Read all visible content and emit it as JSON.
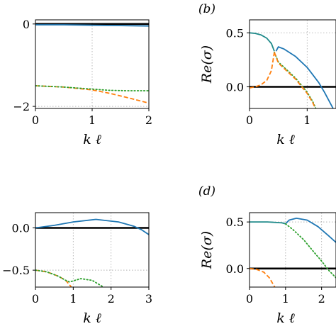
{
  "chart_data": [
    {
      "panel": "a",
      "type": "line",
      "panel_label": "",
      "xlabel": "k ℓ",
      "ylabel": "",
      "xlim": [
        0,
        2
      ],
      "ylim": [
        -2.05,
        0.1
      ],
      "xticks": [
        "0",
        "1",
        "2"
      ],
      "yticks": [
        "0",
        "−2"
      ],
      "ytick_values": [
        0,
        -2
      ],
      "grid": true,
      "series": [
        {
          "color": "#000000",
          "style": "solid",
          "points": [
            [
              0,
              0
            ],
            [
              2,
              0
            ]
          ]
        },
        {
          "color": "#1f77b4",
          "style": "solid",
          "points": [
            [
              0,
              -0.02
            ],
            [
              0.5,
              -0.02
            ],
            [
              1.0,
              -0.03
            ],
            [
              1.5,
              -0.04
            ],
            [
              2.0,
              -0.05
            ]
          ]
        },
        {
          "color": "#ff7f0e",
          "style": "dashed",
          "points": [
            [
              0,
              -1.5
            ],
            [
              0.5,
              -1.53
            ],
            [
              1.0,
              -1.6
            ],
            [
              1.3,
              -1.68
            ],
            [
              1.6,
              -1.78
            ],
            [
              2.0,
              -1.92
            ]
          ]
        },
        {
          "color": "#2ca02c",
          "style": "dotted",
          "points": [
            [
              0,
              -1.5
            ],
            [
              0.5,
              -1.53
            ],
            [
              1.0,
              -1.58
            ],
            [
              1.3,
              -1.61
            ],
            [
              1.6,
              -1.62
            ],
            [
              2.0,
              -1.62
            ]
          ]
        }
      ]
    },
    {
      "panel": "b",
      "type": "line",
      "panel_label": "(b)",
      "xlabel": "k ℓ",
      "ylabel": "Re(σ)",
      "xlim": [
        0,
        1.5
      ],
      "ylim": [
        -0.2,
        0.62
      ],
      "xticks": [
        "0",
        "1"
      ],
      "xtick_values": [
        0,
        1
      ],
      "yticks": [
        "0.0",
        "0.5"
      ],
      "ytick_values": [
        0,
        0.5
      ],
      "grid": true,
      "series": [
        {
          "color": "#000000",
          "style": "solid",
          "points": [
            [
              0,
              0
            ],
            [
              1.5,
              0
            ]
          ]
        },
        {
          "color": "#1f8a8a",
          "style": "solid",
          "points": [
            [
              0,
              0.5
            ],
            [
              0.1,
              0.495
            ],
            [
              0.2,
              0.48
            ],
            [
              0.3,
              0.45
            ],
            [
              0.38,
              0.4
            ],
            [
              0.43,
              0.33
            ]
          ]
        },
        {
          "color": "#1f77b4",
          "style": "solid",
          "points": [
            [
              0.46,
              0.33
            ],
            [
              0.5,
              0.37
            ],
            [
              0.6,
              0.35
            ],
            [
              0.8,
              0.28
            ],
            [
              1.0,
              0.18
            ],
            [
              1.2,
              0.04
            ],
            [
              1.3,
              -0.05
            ],
            [
              1.45,
              -0.2
            ]
          ]
        },
        {
          "color": "#ff7f0e",
          "style": "dashed",
          "points": [
            [
              0,
              -0.01
            ],
            [
              0.1,
              0.0
            ],
            [
              0.2,
              0.02
            ],
            [
              0.3,
              0.06
            ],
            [
              0.38,
              0.15
            ],
            [
              0.43,
              0.32
            ]
          ]
        },
        {
          "color": "#2ca02c",
          "style": "dotted",
          "points": [
            [
              0.43,
              0.32
            ],
            [
              0.5,
              0.23
            ],
            [
              0.6,
              0.18
            ],
            [
              0.8,
              0.08
            ],
            [
              1.0,
              -0.05
            ],
            [
              1.1,
              -0.14
            ],
            [
              1.15,
              -0.2
            ]
          ]
        },
        {
          "color": "#ff7f0e",
          "style": "dashed",
          "points": [
            [
              0.43,
              0.32
            ],
            [
              0.5,
              0.22
            ],
            [
              0.6,
              0.17
            ],
            [
              0.8,
              0.07
            ],
            [
              1.0,
              -0.06
            ],
            [
              1.1,
              -0.15
            ],
            [
              1.14,
              -0.2
            ]
          ]
        }
      ]
    },
    {
      "panel": "c",
      "type": "line",
      "panel_label": "",
      "xlabel": "k ℓ",
      "ylabel": "",
      "xlim": [
        0,
        3
      ],
      "ylim": [
        -0.7,
        0.18
      ],
      "xticks": [
        "0",
        "1",
        "2",
        "3"
      ],
      "xtick_values": [
        0,
        1,
        2,
        3
      ],
      "yticks": [
        "0.0",
        "−0.5"
      ],
      "ytick_values": [
        0,
        -0.5
      ],
      "grid": true,
      "series": [
        {
          "color": "#000000",
          "style": "solid",
          "points": [
            [
              0,
              0
            ],
            [
              3,
              0
            ]
          ]
        },
        {
          "color": "#1f77b4",
          "style": "solid",
          "points": [
            [
              0,
              0.0
            ],
            [
              0.5,
              0.03
            ],
            [
              1.0,
              0.07
            ],
            [
              1.6,
              0.1
            ],
            [
              2.2,
              0.07
            ],
            [
              2.6,
              0.02
            ],
            [
              2.8,
              -0.02
            ],
            [
              3.0,
              -0.08
            ]
          ]
        },
        {
          "color": "#ff7f0e",
          "style": "dashed",
          "points": [
            [
              0,
              -0.5
            ],
            [
              0.3,
              -0.52
            ],
            [
              0.6,
              -0.57
            ],
            [
              0.8,
              -0.62
            ],
            [
              0.95,
              -0.7
            ]
          ]
        },
        {
          "color": "#2ca02c",
          "style": "dotted",
          "points": [
            [
              0,
              -0.5
            ],
            [
              0.3,
              -0.52
            ],
            [
              0.6,
              -0.57
            ],
            [
              0.8,
              -0.62
            ],
            [
              0.9,
              -0.64
            ],
            [
              1.2,
              -0.6
            ],
            [
              1.5,
              -0.62
            ],
            [
              1.8,
              -0.7
            ]
          ]
        }
      ]
    },
    {
      "panel": "d",
      "type": "line",
      "panel_label": "(d)",
      "xlabel": "k ℓ",
      "ylabel": "Re(σ)",
      "xlim": [
        0,
        2.4
      ],
      "ylim": [
        -0.2,
        0.6
      ],
      "xticks": [
        "0",
        "1",
        "2"
      ],
      "xtick_values": [
        0,
        1,
        2
      ],
      "yticks": [
        "0.0",
        "0.5"
      ],
      "ytick_values": [
        0,
        0.5
      ],
      "grid": true,
      "series": [
        {
          "color": "#000000",
          "style": "solid",
          "points": [
            [
              0,
              0
            ],
            [
              2.4,
              0
            ]
          ]
        },
        {
          "color": "#1f8a8a",
          "style": "solid",
          "points": [
            [
              0,
              0.5
            ],
            [
              0.5,
              0.5
            ],
            [
              0.9,
              0.49
            ],
            [
              1.0,
              0.48
            ]
          ]
        },
        {
          "color": "#1f77b4",
          "style": "solid",
          "points": [
            [
              1.0,
              0.48
            ],
            [
              1.1,
              0.52
            ],
            [
              1.3,
              0.54
            ],
            [
              1.6,
              0.52
            ],
            [
              1.9,
              0.45
            ],
            [
              2.2,
              0.35
            ],
            [
              2.4,
              0.28
            ]
          ]
        },
        {
          "color": "#2ca02c",
          "style": "dotted",
          "points": [
            [
              1.0,
              0.48
            ],
            [
              1.2,
              0.42
            ],
            [
              1.5,
              0.31
            ],
            [
              1.8,
              0.17
            ],
            [
              2.0,
              0.08
            ],
            [
              2.2,
              -0.02
            ],
            [
              2.4,
              -0.1
            ]
          ]
        },
        {
          "color": "#ff7f0e",
          "style": "dashed",
          "points": [
            [
              0,
              0.0
            ],
            [
              0.2,
              -0.01
            ],
            [
              0.4,
              -0.04
            ],
            [
              0.55,
              -0.1
            ],
            [
              0.7,
              -0.2
            ]
          ]
        }
      ]
    }
  ]
}
